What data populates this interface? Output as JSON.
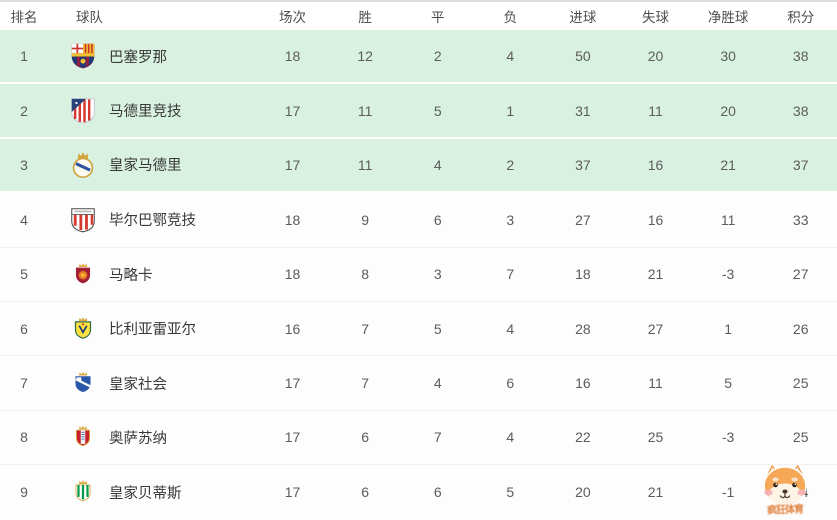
{
  "table": {
    "headers": [
      "排名",
      "球队",
      "场次",
      "胜",
      "平",
      "负",
      "进球",
      "失球",
      "净胜球",
      "积分"
    ],
    "rows": [
      {
        "rank": 1,
        "team": "巴塞罗那",
        "logo": "barcelona",
        "highlighted": true,
        "played": 18,
        "win": 12,
        "draw": 2,
        "loss": 4,
        "goals_for": 50,
        "goals_against": 20,
        "goal_diff": 30,
        "points": 38
      },
      {
        "rank": 2,
        "team": "马德里竞技",
        "logo": "atletico",
        "highlighted": true,
        "played": 17,
        "win": 11,
        "draw": 5,
        "loss": 1,
        "goals_for": 31,
        "goals_against": 11,
        "goal_diff": 20,
        "points": 38
      },
      {
        "rank": 3,
        "team": "皇家马德里",
        "logo": "realmadrid",
        "highlighted": true,
        "played": 17,
        "win": 11,
        "draw": 4,
        "loss": 2,
        "goals_for": 37,
        "goals_against": 16,
        "goal_diff": 21,
        "points": 37
      },
      {
        "rank": 4,
        "team": "毕尔巴鄂竞技",
        "logo": "athletic",
        "highlighted": false,
        "played": 18,
        "win": 9,
        "draw": 6,
        "loss": 3,
        "goals_for": 27,
        "goals_against": 16,
        "goal_diff": 11,
        "points": 33
      },
      {
        "rank": 5,
        "team": "马略卡",
        "logo": "mallorca",
        "highlighted": false,
        "played": 18,
        "win": 8,
        "draw": 3,
        "loss": 7,
        "goals_for": 18,
        "goals_against": 21,
        "goal_diff": -3,
        "points": 27
      },
      {
        "rank": 6,
        "team": "比利亚雷亚尔",
        "logo": "villarreal",
        "highlighted": false,
        "played": 16,
        "win": 7,
        "draw": 5,
        "loss": 4,
        "goals_for": 28,
        "goals_against": 27,
        "goal_diff": 1,
        "points": 26
      },
      {
        "rank": 7,
        "team": "皇家社会",
        "logo": "sociedad",
        "highlighted": false,
        "played": 17,
        "win": 7,
        "draw": 4,
        "loss": 6,
        "goals_for": 16,
        "goals_against": 11,
        "goal_diff": 5,
        "points": 25
      },
      {
        "rank": 8,
        "team": "奥萨苏纳",
        "logo": "osasuna",
        "highlighted": false,
        "played": 17,
        "win": 6,
        "draw": 7,
        "loss": 4,
        "goals_for": 22,
        "goals_against": 25,
        "goal_diff": -3,
        "points": 25
      },
      {
        "rank": 9,
        "team": "皇家贝蒂斯",
        "logo": "betis",
        "highlighted": false,
        "played": 17,
        "win": 6,
        "draw": 6,
        "loss": 5,
        "goals_for": 20,
        "goals_against": 21,
        "goal_diff": -1,
        "points": 24
      }
    ]
  },
  "colors": {
    "highlight_row_bg": "#d9f1e1",
    "header_text": "#4d4d4d",
    "cell_text": "#5c5c5c",
    "team_name_text": "#383838",
    "watermark_text_color": "#e0823d"
  },
  "watermark": {
    "text": "疯狂体育",
    "mascot_icon": "shiba-dog-sticker"
  }
}
